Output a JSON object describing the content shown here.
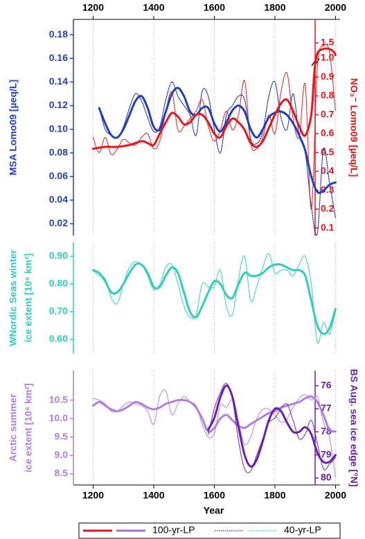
{
  "chart_data": [
    {
      "type": "line",
      "xaxis": "top",
      "grid": true,
      "xlim": [
        1135,
        2015
      ],
      "xticks": [
        1200,
        1400,
        1600,
        1800,
        2000
      ],
      "ylabel": [
        "MSA Lomo09 [µeq/L]"
      ],
      "ycolor": "#1f3fbf",
      "ylim": [
        0.01,
        0.193
      ],
      "yticks": [
        0.02,
        0.04,
        0.06,
        0.08,
        {
          "value": 0.1,
          "label": "0.10"
        },
        0.12,
        0.14,
        0.16,
        0.18
      ],
      "y2label": "NO₃⁻ Lomo09 [µeq/L]",
      "y2color": "#e8141b",
      "y2lim": [
        0.06,
        2.27
      ],
      "y2_break": 1.0,
      "y2ticks": [
        0.1,
        0.2,
        0.3,
        0.4,
        0.5,
        0.6,
        0.7,
        0.8,
        0.9,
        {
          "value": 1,
          "label": "1.0"
        },
        1.5
      ],
      "series": [
        {
          "color": "#1a2a9a",
          "style": "dotted",
          "x": [
            1220,
            1240,
            1260,
            1280,
            1300,
            1320,
            1340,
            1360,
            1380,
            1400,
            1420,
            1440,
            1460,
            1480,
            1500,
            1520,
            1540,
            1560,
            1580,
            1600,
            1620,
            1640,
            1660,
            1680,
            1700,
            1720,
            1740,
            1760,
            1780,
            1800,
            1820,
            1840,
            1860,
            1880,
            1900,
            1920,
            1940,
            1960,
            1980,
            2000
          ],
          "values": [
            0.118,
            0.1,
            0.095,
            0.093,
            0.102,
            0.118,
            0.13,
            0.124,
            0.11,
            0.098,
            0.102,
            0.125,
            0.14,
            0.128,
            0.12,
            0.112,
            0.095,
            0.132,
            0.128,
            0.1,
            0.08,
            0.112,
            0.12,
            0.128,
            0.125,
            0.092,
            0.088,
            0.098,
            0.128,
            0.14,
            0.11,
            0.1,
            0.13,
            0.095,
            0.08,
            0.035,
            0.012,
            0.083,
            0.055,
            0.025
          ]
        },
        {
          "color": "#e8141b",
          "style": "dotted",
          "axis": "y2",
          "x": [
            1200,
            1220,
            1240,
            1260,
            1280,
            1300,
            1320,
            1340,
            1360,
            1380,
            1400,
            1420,
            1440,
            1460,
            1480,
            1500,
            1520,
            1540,
            1560,
            1580,
            1600,
            1620,
            1640,
            1660,
            1680,
            1700,
            1720,
            1740,
            1760,
            1780,
            1800,
            1820,
            1840,
            1860,
            1880,
            1900,
            1920,
            1940,
            1960,
            1980,
            2000
          ],
          "values": [
            0.58,
            0.5,
            0.58,
            0.49,
            0.52,
            0.57,
            0.55,
            0.54,
            0.58,
            0.6,
            0.52,
            0.56,
            0.72,
            0.82,
            0.62,
            0.64,
            0.68,
            0.72,
            0.78,
            0.64,
            0.56,
            0.62,
            0.72,
            0.62,
            0.7,
            0.88,
            0.55,
            0.52,
            0.58,
            0.7,
            0.6,
            0.82,
            0.92,
            0.68,
            0.58,
            0.86,
            0.2,
            0.95,
            1.4,
            1.2,
            0.72
          ]
        },
        {
          "color": "#1f3fbf",
          "style": "solid",
          "x": [
            1220,
            1240,
            1260,
            1280,
            1300,
            1320,
            1340,
            1360,
            1380,
            1400,
            1420,
            1440,
            1460,
            1480,
            1500,
            1520,
            1540,
            1560,
            1580,
            1600,
            1620,
            1640,
            1660,
            1680,
            1700,
            1720,
            1740,
            1760,
            1780,
            1800,
            1820,
            1840,
            1860,
            1880,
            1900,
            1920,
            1940,
            1960,
            1980,
            2000
          ],
          "values": [
            0.118,
            0.105,
            0.095,
            0.093,
            0.1,
            0.112,
            0.124,
            0.128,
            0.118,
            0.102,
            0.1,
            0.115,
            0.13,
            0.135,
            0.128,
            0.115,
            0.112,
            0.118,
            0.118,
            0.105,
            0.098,
            0.106,
            0.116,
            0.12,
            0.115,
            0.1,
            0.093,
            0.1,
            0.11,
            0.114,
            0.115,
            0.112,
            0.105,
            0.095,
            0.082,
            0.06,
            0.047,
            0.048,
            0.053,
            0.055
          ]
        },
        {
          "color": "#e8141b",
          "style": "solid",
          "axis": "y2",
          "x": [
            1200,
            1240,
            1280,
            1320,
            1360,
            1380,
            1400,
            1420,
            1440,
            1460,
            1480,
            1500,
            1520,
            1540,
            1560,
            1580,
            1600,
            1620,
            1640,
            1660,
            1680,
            1700,
            1720,
            1740,
            1760,
            1780,
            1800,
            1820,
            1840,
            1860,
            1880,
            1900,
            1920,
            1930,
            1940,
            1960,
            1980,
            1995,
            2000
          ],
          "values": [
            0.52,
            0.53,
            0.53,
            0.54,
            0.56,
            0.55,
            0.54,
            0.6,
            0.66,
            0.71,
            0.69,
            0.65,
            0.66,
            0.7,
            0.7,
            0.66,
            0.6,
            0.58,
            0.64,
            0.68,
            0.66,
            0.62,
            0.55,
            0.53,
            0.56,
            0.63,
            0.7,
            0.76,
            0.78,
            0.72,
            0.64,
            0.59,
            0.7,
            0.92,
            1.15,
            1.3,
            1.3,
            1.2,
            1.1
          ]
        }
      ]
    },
    {
      "type": "line",
      "grid": true,
      "xlim": [
        1135,
        2015
      ],
      "ylabel": [
        "WNordic Seas winter",
        "ice extent [10⁶ km²]"
      ],
      "ycolor": "#2ecdc0",
      "ylim": [
        0.55,
        0.95
      ],
      "yticks": [
        {
          "value": 0.6,
          "label": "0.60"
        },
        {
          "value": 0.7,
          "label": "0.70"
        },
        {
          "value": 0.8,
          "label": "0.80"
        },
        {
          "value": 0.9,
          "label": "0.90"
        }
      ],
      "series": [
        {
          "color": "#2ecdc0",
          "style": "dotted",
          "x": [
            1200,
            1220,
            1240,
            1260,
            1280,
            1300,
            1320,
            1340,
            1360,
            1380,
            1400,
            1420,
            1440,
            1460,
            1480,
            1500,
            1520,
            1540,
            1560,
            1580,
            1600,
            1620,
            1640,
            1660,
            1680,
            1700,
            1720,
            1740,
            1760,
            1780,
            1800,
            1820,
            1840,
            1860,
            1880,
            1900,
            1920,
            1940,
            1960,
            1980,
            2000
          ],
          "values": [
            0.85,
            0.83,
            0.82,
            0.75,
            0.73,
            0.8,
            0.86,
            0.88,
            0.87,
            0.83,
            0.78,
            0.8,
            0.86,
            0.87,
            0.8,
            0.72,
            0.68,
            0.69,
            0.8,
            0.79,
            0.79,
            0.85,
            0.72,
            0.69,
            0.82,
            0.9,
            0.74,
            0.79,
            0.86,
            0.91,
            0.84,
            0.85,
            0.85,
            0.83,
            0.87,
            0.9,
            0.8,
            0.59,
            0.66,
            0.62,
            0.7
          ]
        },
        {
          "color": "#2ecdc0",
          "style": "solid",
          "x": [
            1200,
            1220,
            1240,
            1260,
            1280,
            1300,
            1320,
            1340,
            1360,
            1380,
            1400,
            1420,
            1440,
            1460,
            1480,
            1500,
            1520,
            1540,
            1560,
            1580,
            1600,
            1620,
            1640,
            1660,
            1680,
            1700,
            1720,
            1740,
            1760,
            1780,
            1800,
            1820,
            1840,
            1860,
            1880,
            1900,
            1920,
            1940,
            1960,
            1980,
            2000
          ],
          "values": [
            0.85,
            0.84,
            0.81,
            0.77,
            0.77,
            0.8,
            0.84,
            0.87,
            0.87,
            0.84,
            0.79,
            0.79,
            0.83,
            0.86,
            0.84,
            0.77,
            0.7,
            0.68,
            0.72,
            0.77,
            0.81,
            0.8,
            0.76,
            0.75,
            0.8,
            0.84,
            0.83,
            0.83,
            0.84,
            0.86,
            0.87,
            0.87,
            0.86,
            0.85,
            0.85,
            0.83,
            0.74,
            0.65,
            0.62,
            0.64,
            0.71
          ]
        }
      ]
    },
    {
      "type": "line",
      "xaxis": "bottom",
      "grid": true,
      "xlim": [
        1135,
        2015
      ],
      "xticks": [
        1200,
        1400,
        1600,
        1800,
        2000
      ],
      "xlabel": "Year",
      "ylabel": [
        "Arctic summer",
        "ice extent [10⁶ km²]"
      ],
      "ycolor": "#b07fe0",
      "ylim": [
        8.2,
        11.3
      ],
      "yticks": [
        8.5,
        {
          "value": 9,
          "label": "9.0"
        },
        9.5,
        {
          "value": 10,
          "label": "10.0"
        },
        10.5
      ],
      "y2label": "BS Aug. sea ice edge [°N]",
      "y2color": "#6a1fb0",
      "y2lim": [
        75.35,
        80.3
      ],
      "y2_inverted": true,
      "y2ticks": [
        76,
        77,
        78,
        79,
        80
      ],
      "series": [
        {
          "color": "#b07fe0",
          "style": "dotted",
          "x": [
            1200,
            1220,
            1240,
            1260,
            1280,
            1300,
            1320,
            1340,
            1360,
            1380,
            1400,
            1420,
            1440,
            1460,
            1480,
            1500,
            1520,
            1540,
            1560,
            1580,
            1600,
            1620,
            1640,
            1660,
            1680,
            1700,
            1720,
            1740,
            1760,
            1780,
            1800,
            1820,
            1840,
            1860,
            1880,
            1900,
            1920,
            1940,
            1960,
            1980,
            2000
          ],
          "values": [
            10.55,
            10.5,
            10.4,
            10.2,
            10.2,
            10.35,
            10.45,
            10.4,
            10.35,
            10.2,
            9.85,
            10.6,
            10.75,
            10.1,
            10.4,
            10.6,
            10.45,
            10.35,
            9.85,
            9.5,
            9.6,
            10.35,
            10.3,
            10.5,
            9.9,
            9.3,
            9.5,
            10.0,
            10.25,
            10.25,
            10.1,
            9.9,
            10.0,
            10.3,
            10.55,
            10.65,
            10.5,
            10.6,
            9.9,
            9.5,
            8.4
          ]
        },
        {
          "color": "#b07fe0",
          "style": "solid",
          "x": [
            1200,
            1220,
            1240,
            1260,
            1280,
            1300,
            1320,
            1340,
            1360,
            1380,
            1400,
            1420,
            1440,
            1460,
            1480,
            1500,
            1520,
            1540,
            1560,
            1580,
            1600,
            1620,
            1640,
            1660,
            1680,
            1700,
            1720,
            1740,
            1760,
            1780,
            1800,
            1820,
            1840,
            1860,
            1880,
            1900,
            1920,
            1940,
            1960,
            1980,
            2000
          ],
          "values": [
            10.35,
            10.45,
            10.35,
            10.25,
            10.2,
            10.25,
            10.35,
            10.45,
            10.4,
            10.3,
            10.25,
            10.3,
            10.4,
            10.45,
            10.5,
            10.5,
            10.45,
            10.3,
            10.0,
            9.65,
            9.75,
            10.0,
            10.1,
            9.95,
            9.8,
            9.75,
            9.85,
            9.95,
            10.05,
            10.15,
            10.2,
            10.3,
            10.35,
            10.4,
            10.45,
            10.55,
            10.6,
            10.45,
            10.1,
            9.7,
            9.65
          ]
        },
        {
          "color": "#6a1fb0",
          "style": "dotted",
          "axis": "y2",
          "x": [
            1580,
            1600,
            1620,
            1640,
            1660,
            1680,
            1700,
            1720,
            1740,
            1760,
            1780,
            1800,
            1820,
            1840,
            1860,
            1880,
            1900,
            1920,
            1940,
            1960,
            1980,
            2000
          ],
          "values": [
            78.1,
            77.0,
            76.3,
            75.9,
            76.6,
            78.4,
            79.6,
            79.7,
            79.0,
            78.3,
            77.6,
            77.4,
            77.0,
            76.8,
            77.5,
            78.3,
            78.1,
            77.5,
            78.5,
            79.6,
            79.4,
            79.1
          ]
        },
        {
          "color": "#6a1fb0",
          "style": "solid",
          "axis": "y2",
          "x": [
            1580,
            1600,
            1620,
            1640,
            1660,
            1680,
            1700,
            1720,
            1740,
            1760,
            1780,
            1800,
            1820,
            1840,
            1860,
            1880,
            1900,
            1920,
            1940,
            1960,
            1980,
            2000
          ],
          "values": [
            77.9,
            77.4,
            76.5,
            76.0,
            76.5,
            77.8,
            79.0,
            79.5,
            79.2,
            78.4,
            77.5,
            77.0,
            77.1,
            77.6,
            78.0,
            78.0,
            77.8,
            78.1,
            78.9,
            79.3,
            79.3,
            79.0
          ]
        }
      ],
      "legend": [
        {
          "label": "100-yr-LP",
          "style": "solid",
          "colors": [
            "#e8141b",
            "#a070d8"
          ]
        },
        {
          "label": "40-yr-LP",
          "style": "dotted",
          "colors": [
            "#1a2a9a",
            "#2ecdc0"
          ]
        }
      ]
    }
  ]
}
